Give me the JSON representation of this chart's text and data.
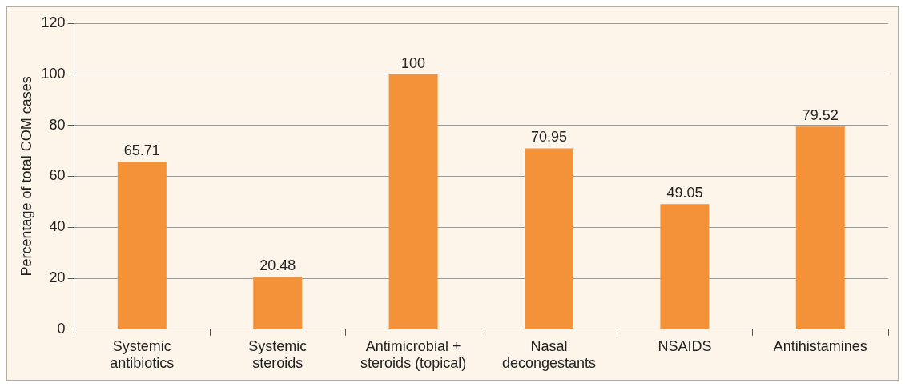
{
  "chart_data": {
    "type": "bar",
    "ylabel": "Percentage of total COM cases",
    "categories": [
      "Systemic\nantibiotics",
      "Systemic\nsteroids",
      "Antimicrobial +\nsteroids (topical)",
      "Nasal\ndecongestants",
      "NSAIDS",
      "Antihistamines"
    ],
    "values": [
      65.71,
      20.48,
      100,
      70.95,
      49.05,
      79.52
    ],
    "color": "#f4923a",
    "ylim": [
      0,
      120
    ],
    "yticks": [
      0,
      20,
      40,
      60,
      80,
      100,
      120
    ],
    "grid": "y",
    "data_labels": true
  }
}
